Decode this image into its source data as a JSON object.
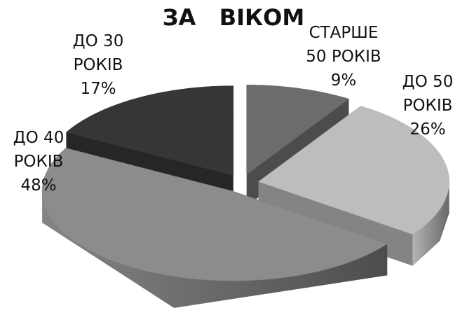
{
  "chart_data": {
    "type": "pie3d",
    "title": "ЗА   ВІКОМ",
    "categories": [
      "СТАРШЕ 50 РОКІВ",
      "ДО 50 РОКІВ",
      "ДО 40 РОКІВ",
      "ДО 30 РОКІВ"
    ],
    "values": [
      9,
      26,
      48,
      17
    ],
    "value_labels": [
      "9%",
      "26%",
      "48%",
      "17%"
    ],
    "colors": [
      "#6c6c6c",
      "#bdbdbd",
      "#8c8c8c",
      "#363636"
    ]
  }
}
